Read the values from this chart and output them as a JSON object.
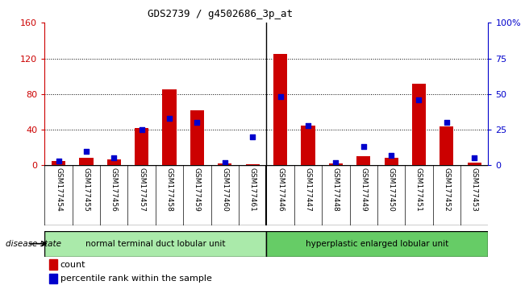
{
  "title": "GDS2739 / g4502686_3p_at",
  "samples": [
    "GSM177454",
    "GSM177455",
    "GSM177456",
    "GSM177457",
    "GSM177458",
    "GSM177459",
    "GSM177460",
    "GSM177461",
    "GSM177446",
    "GSM177447",
    "GSM177448",
    "GSM177449",
    "GSM177450",
    "GSM177451",
    "GSM177452",
    "GSM177453"
  ],
  "counts": [
    5,
    8,
    7,
    42,
    85,
    62,
    2,
    1,
    125,
    45,
    2,
    10,
    8,
    92,
    44,
    3
  ],
  "percentiles": [
    3,
    10,
    5,
    25,
    33,
    30,
    2,
    20,
    48,
    28,
    2,
    13,
    7,
    46,
    30,
    5
  ],
  "group1_label": "normal terminal duct lobular unit",
  "group1_count": 8,
  "group2_label": "hyperplastic enlarged lobular unit",
  "group2_count": 8,
  "disease_state_label": "disease state",
  "bar_color": "#cc0000",
  "dot_color": "#0000cc",
  "left_axis_color": "#cc0000",
  "right_axis_color": "#0000cc",
  "ylim_left": [
    0,
    160
  ],
  "ylim_right": [
    0,
    100
  ],
  "left_ticks": [
    0,
    40,
    80,
    120,
    160
  ],
  "right_ticks": [
    0,
    25,
    50,
    75,
    100
  ],
  "right_tick_labels": [
    "0",
    "25",
    "50",
    "75",
    "100%"
  ],
  "grid_color": "#000000",
  "bg_color": "#ffffff",
  "tick_bg": "#cccccc",
  "group1_bg": "#aaeaaa",
  "group2_bg": "#66cc66",
  "bar_width": 0.5
}
